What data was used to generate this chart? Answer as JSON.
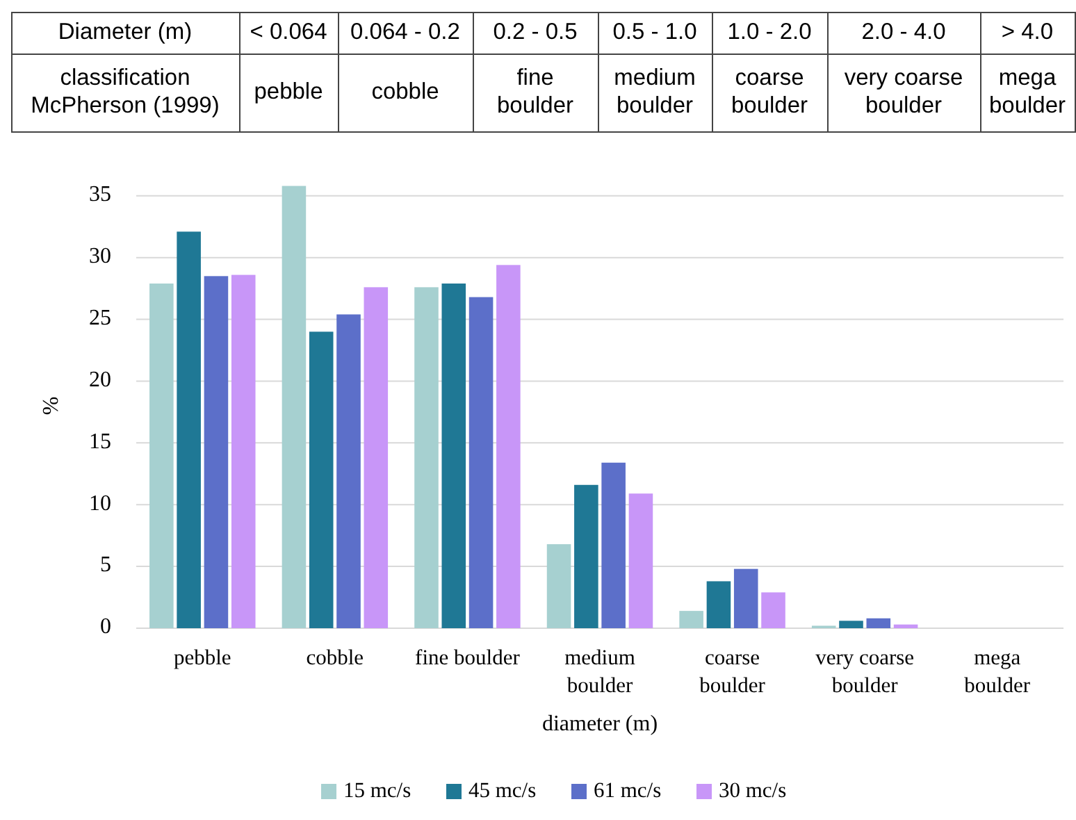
{
  "chart_data": [
    {
      "type": "other",
      "categories": [
        "Diameter (m)",
        "< 0.064",
        "0.064 - 0.2",
        "0.2 - 0.5",
        "0.5 - 1.0",
        "1.0 - 2.0",
        "2.0 - 4.0",
        "> 4.0"
      ],
      "y_categories": [
        "classification\nMcPherson (1999)"
      ],
      "cell_labels": [
        [
          "pebble",
          "cobble",
          "fine\nboulder",
          "medium\nboulder",
          "coarse\nboulder",
          "very coarse\nboulder",
          "mega\nboulder"
        ]
      ]
    },
    {
      "type": "bar",
      "xlabel": "diameter (m)",
      "ylabel": "%",
      "categories": [
        "pebble",
        "cobble",
        "fine boulder",
        "medium\nboulder",
        "coarse\nboulder",
        "very coarse\nboulder",
        "mega\nboulder"
      ],
      "series": [
        {
          "name": "15 mc/s",
          "color": "#a6d0d0",
          "values": [
            27.9,
            35.8,
            27.6,
            6.8,
            1.4,
            0.2,
            0
          ]
        },
        {
          "name": "45 mc/s",
          "color": "#1f7895",
          "values": [
            32.1,
            24.0,
            27.9,
            11.6,
            3.8,
            0.6,
            0
          ]
        },
        {
          "name": "61 mc/s",
          "color": "#5c6fc9",
          "values": [
            28.5,
            25.4,
            26.8,
            13.4,
            4.8,
            0.8,
            0
          ]
        },
        {
          "name": "30 mc/s",
          "color": "#c896f8",
          "values": [
            28.6,
            27.6,
            29.4,
            10.9,
            2.9,
            0.3,
            0
          ]
        }
      ],
      "ylim": [
        0,
        36
      ],
      "yticks": [
        0,
        5,
        10,
        15,
        20,
        25,
        30,
        35
      ],
      "grid": "y",
      "legend": "bottom"
    }
  ]
}
